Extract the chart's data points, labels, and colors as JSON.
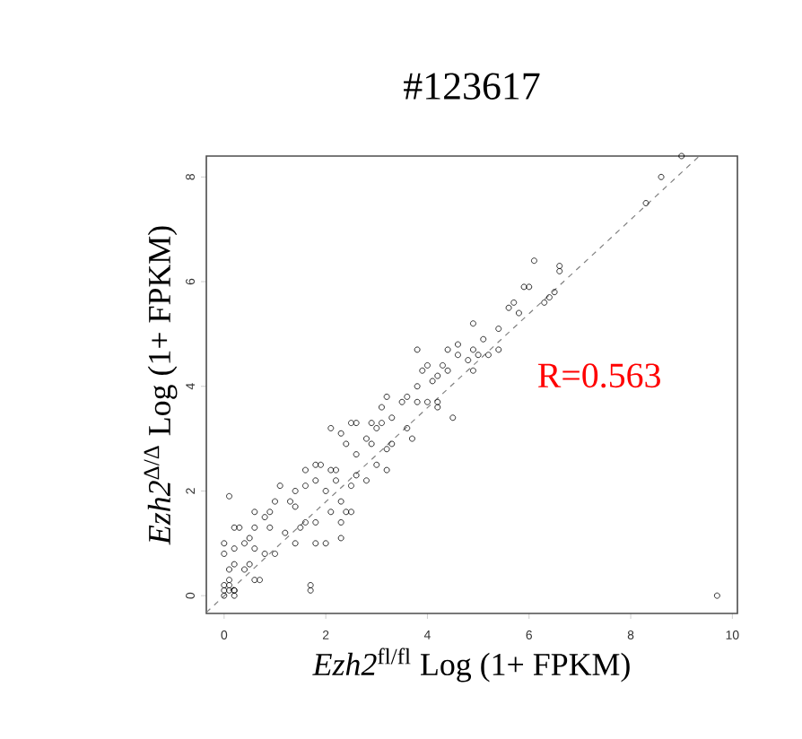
{
  "chart_data": {
    "type": "scatter",
    "title": "#123617",
    "xlabel": "*Ezh2*$^{fl/fl}$ Log (1+ FPKM)",
    "ylabel": "*Ezh2*$^{Δ/Δ}$ Log (1+ FPKM)",
    "xlim": [
      -0.35,
      10.1
    ],
    "ylim": [
      -0.34,
      8.4
    ],
    "xticks": [
      0,
      2,
      4,
      6,
      8,
      10
    ],
    "yticks": [
      0,
      2,
      4,
      6,
      8
    ],
    "grid": false,
    "marker": "circle",
    "annotations": [
      "R=0.563"
    ],
    "series": [
      {
        "color": "#000000",
        "x": [
          9.0,
          8.6,
          8.3,
          9.7,
          6.1,
          6.0,
          6.6,
          6.6,
          6.5,
          6.4,
          6.3,
          5.9,
          5.7,
          5.6,
          5.8,
          5.4,
          5.1,
          4.9,
          4.9,
          4.6,
          4.4,
          5.4,
          5.2,
          4.9,
          4.6,
          3.8,
          4.4,
          4.0,
          4.1,
          3.9,
          3.8,
          3.6,
          3.8,
          4.0,
          4.2,
          4.2,
          4.5,
          3.7,
          3.5,
          3.2,
          3.1,
          3.3,
          3.1,
          3.0,
          2.9,
          2.6,
          2.8,
          2.9,
          3.2,
          3.3,
          3.6,
          2.5,
          2.3,
          2.1,
          2.4,
          2.6,
          3.0,
          3.2,
          2.6,
          2.8,
          2.5,
          2.2,
          2.1,
          2.2,
          1.9,
          1.8,
          1.6,
          1.8,
          1.6,
          2.0,
          2.3,
          2.3,
          2.3,
          2.0,
          1.8,
          1.8,
          1.6,
          1.5,
          1.4,
          1.4,
          1.1,
          1.3,
          1.0,
          0.9,
          0.9,
          1.2,
          1.4,
          0.8,
          0.6,
          0.6,
          0.5,
          0.3,
          0.2,
          0.1,
          0.4,
          0.2,
          0.0,
          0.0,
          0.2,
          0.6,
          0.8,
          0.5,
          0.4,
          0.6,
          0.7,
          0.1,
          0.1,
          1.7,
          1.7,
          1.0,
          2.1,
          2.4,
          2.5,
          0.0,
          0.1,
          0.2,
          0.2,
          0.0,
          0.1,
          0.0,
          0.2,
          4.8,
          5.0,
          4.2,
          4.3
        ],
        "values": [
          8.4,
          8.0,
          7.5,
          0.0,
          6.4,
          5.9,
          6.3,
          6.2,
          5.8,
          5.7,
          5.6,
          5.9,
          5.6,
          5.5,
          5.4,
          5.1,
          4.9,
          5.2,
          4.7,
          4.8,
          4.7,
          4.7,
          4.6,
          4.3,
          4.6,
          4.7,
          4.3,
          4.4,
          4.1,
          4.3,
          4.0,
          3.8,
          3.7,
          3.7,
          3.7,
          3.6,
          3.4,
          3.0,
          3.7,
          3.8,
          3.6,
          3.4,
          3.3,
          3.2,
          3.3,
          3.3,
          3.0,
          2.9,
          2.8,
          2.9,
          3.2,
          3.3,
          3.1,
          3.2,
          2.9,
          2.7,
          2.5,
          2.4,
          2.3,
          2.2,
          2.1,
          2.4,
          2.4,
          2.2,
          2.5,
          2.5,
          2.4,
          2.2,
          2.1,
          2.0,
          1.8,
          1.4,
          1.1,
          1.0,
          1.0,
          1.4,
          1.4,
          1.3,
          1.7,
          2.0,
          2.1,
          1.8,
          1.8,
          1.6,
          1.3,
          1.2,
          1.0,
          1.5,
          1.6,
          1.3,
          1.1,
          1.3,
          1.3,
          1.9,
          1.0,
          0.9,
          1.0,
          0.8,
          0.6,
          0.9,
          0.8,
          0.6,
          0.5,
          0.3,
          0.3,
          0.5,
          0.3,
          0.2,
          0.1,
          0.8,
          1.6,
          1.6,
          1.6,
          0.2,
          0.1,
          0.1,
          0.0,
          0.0,
          0.2,
          0.1,
          0.1,
          4.5,
          4.6,
          4.2,
          4.4
        ]
      },
      {
        "type": "line",
        "color": "#808080",
        "line_style": "dashed",
        "marker": "none",
        "x": [
          -0.35,
          9.35
        ],
        "values": [
          -0.32,
          8.4
        ]
      }
    ]
  }
}
